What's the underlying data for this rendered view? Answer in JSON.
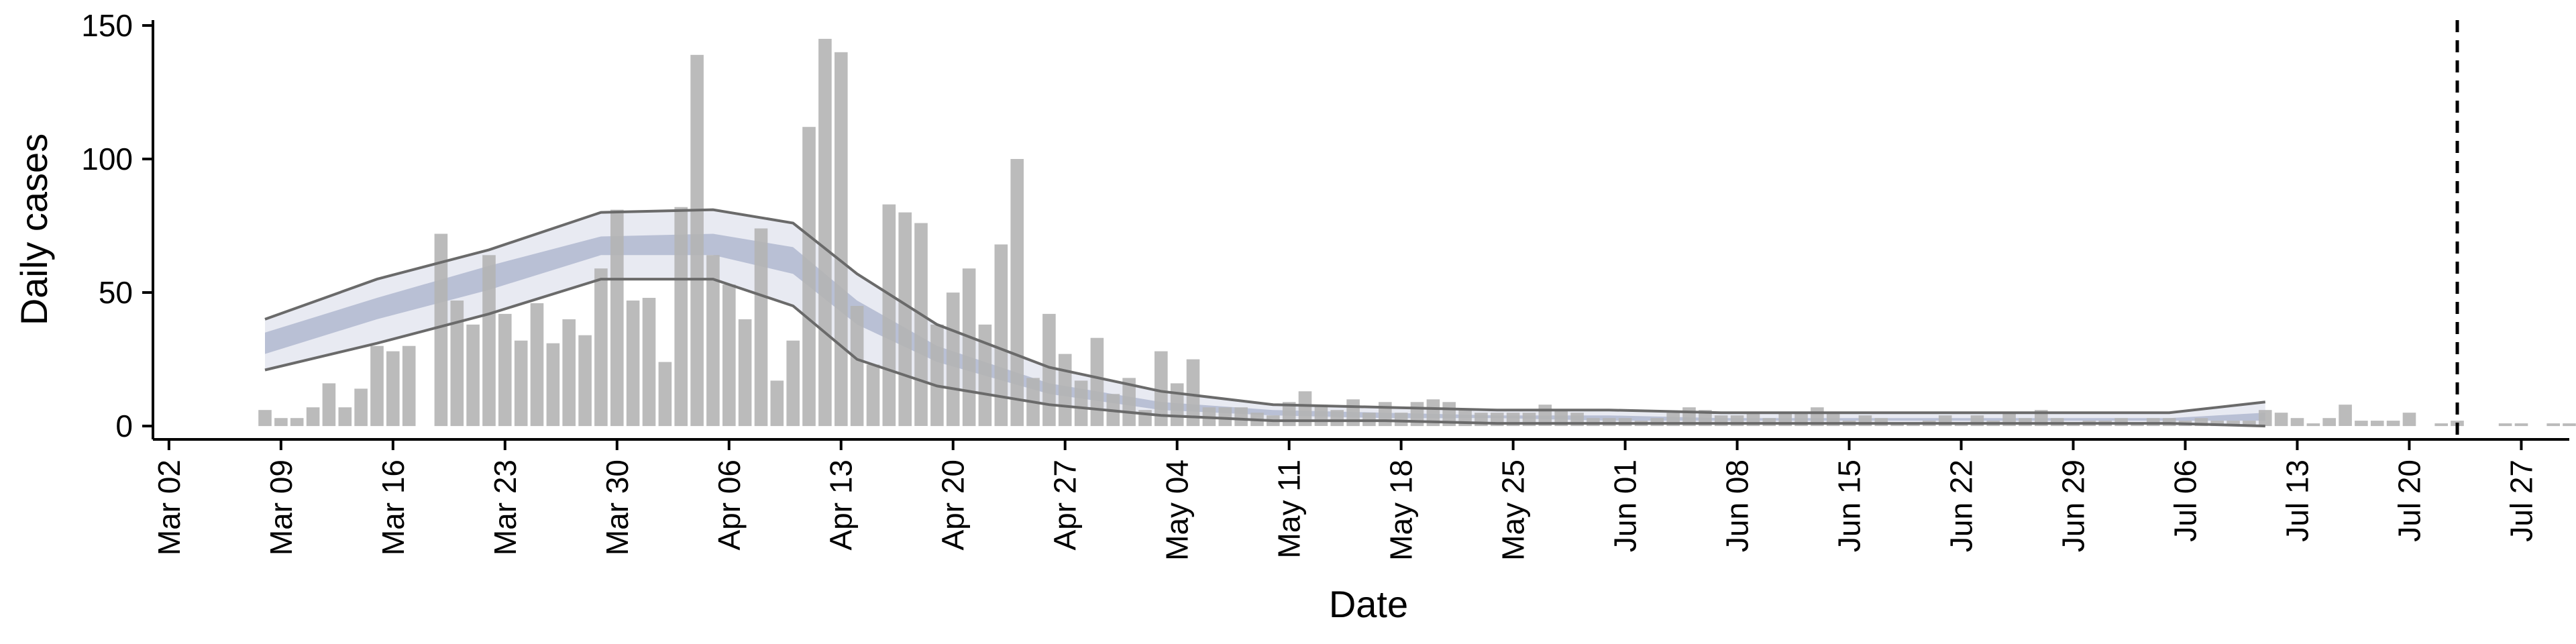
{
  "chart_data": {
    "type": "bar",
    "xlabel": "Date",
    "ylabel": "Daily cases",
    "ylim": [
      -5,
      152
    ],
    "yticks": [
      0,
      50,
      100,
      150
    ],
    "xlim": [
      "2020-03-01",
      "2020-07-30"
    ],
    "xtick_labels": [
      "Mar 02",
      "Mar 09",
      "Mar 16",
      "Mar 23",
      "Mar 30",
      "Apr 06",
      "Apr 13",
      "Apr 20",
      "Apr 27",
      "May 04",
      "May 11",
      "May 18",
      "May 25",
      "Jun 01",
      "Jun 08",
      "Jun 15",
      "Jun 22",
      "Jun 29",
      "Jul 06",
      "Jul 13",
      "Jul 20",
      "Jul 27"
    ],
    "xtick_dates": [
      "2020-03-02",
      "2020-03-09",
      "2020-03-16",
      "2020-03-23",
      "2020-03-30",
      "2020-04-06",
      "2020-04-13",
      "2020-04-20",
      "2020-04-27",
      "2020-05-04",
      "2020-05-11",
      "2020-05-18",
      "2020-05-25",
      "2020-06-01",
      "2020-06-08",
      "2020-06-15",
      "2020-06-22",
      "2020-06-29",
      "2020-07-06",
      "2020-07-13",
      "2020-07-20",
      "2020-07-27"
    ],
    "grid": false,
    "spines": [
      "left",
      "bottom"
    ],
    "colors": {
      "bars": "#b4b4b4",
      "band_outer": "#e6e8f1",
      "band_inner": "#a9b1cb",
      "bound_lines": "#6a6a6a",
      "vline": "#000000",
      "axis": "#000000"
    },
    "vline_date": "2020-07-23",
    "series": [
      {
        "type": "bar",
        "x_start": "2020-03-08",
        "values": [
          6,
          3,
          3,
          7,
          16,
          7,
          14,
          30,
          28,
          30,
          0,
          72,
          47,
          38,
          64,
          42,
          32,
          46,
          31,
          40,
          34,
          59,
          81,
          47,
          48,
          24,
          82,
          139,
          64,
          53,
          40,
          74,
          17,
          32,
          112,
          145,
          140,
          45,
          23,
          83,
          80,
          76,
          38,
          50,
          59,
          38,
          68,
          100,
          18,
          42,
          27,
          17,
          33,
          12,
          18,
          6,
          28,
          16,
          25,
          7,
          7,
          7,
          5,
          4,
          9,
          13,
          8,
          6,
          10,
          5,
          9,
          5,
          9,
          10,
          9,
          6,
          5,
          5,
          5,
          5,
          8,
          6,
          5,
          3,
          3,
          3,
          2,
          3,
          5,
          7,
          6,
          4,
          4,
          5,
          3,
          5,
          5,
          7,
          5,
          2,
          4,
          3,
          1,
          1,
          2,
          4,
          1,
          4,
          2,
          5,
          3,
          6,
          3,
          1,
          2,
          2,
          3,
          1,
          3,
          3,
          2,
          3,
          2,
          2,
          2,
          6,
          5,
          3,
          1,
          3,
          8,
          2,
          2,
          2,
          5,
          0,
          1,
          2,
          0,
          0,
          1,
          1,
          0,
          1,
          1,
          3,
          1
        ]
      },
      {
        "type": "band",
        "name_key": "outer",
        "x": [
          "2020-03-08",
          "2020-03-15",
          "2020-03-22",
          "2020-03-29",
          "2020-04-05",
          "2020-04-10",
          "2020-04-14",
          "2020-04-19",
          "2020-04-26",
          "2020-05-03",
          "2020-05-10",
          "2020-05-17",
          "2020-05-24",
          "2020-05-31",
          "2020-06-07",
          "2020-06-14",
          "2020-06-21",
          "2020-06-28",
          "2020-07-05",
          "2020-07-11"
        ],
        "lower": [
          21,
          31,
          42,
          55,
          55,
          45,
          25,
          15,
          8,
          4,
          2,
          2,
          1,
          1,
          1,
          1,
          1,
          1,
          1,
          0
        ],
        "upper": [
          40,
          55,
          66,
          80,
          81,
          76,
          57,
          38,
          22,
          13,
          8,
          7,
          6,
          6,
          5,
          5,
          5,
          5,
          5,
          9
        ]
      },
      {
        "type": "band",
        "name_key": "inner",
        "x": [
          "2020-03-08",
          "2020-03-15",
          "2020-03-22",
          "2020-03-29",
          "2020-04-05",
          "2020-04-10",
          "2020-04-14",
          "2020-04-19",
          "2020-04-26",
          "2020-05-03",
          "2020-05-10",
          "2020-05-17",
          "2020-05-24",
          "2020-05-31",
          "2020-06-07",
          "2020-06-14",
          "2020-06-21",
          "2020-06-28",
          "2020-07-05",
          "2020-07-11"
        ],
        "lower": [
          27,
          40,
          51,
          64,
          64,
          57,
          38,
          24,
          12,
          6,
          4,
          3,
          3,
          2,
          2,
          2,
          2,
          2,
          2,
          2
        ],
        "upper": [
          35,
          48,
          60,
          71,
          72,
          67,
          47,
          30,
          16,
          9,
          6,
          5,
          4,
          4,
          3,
          3,
          3,
          3,
          3,
          5
        ]
      }
    ]
  }
}
